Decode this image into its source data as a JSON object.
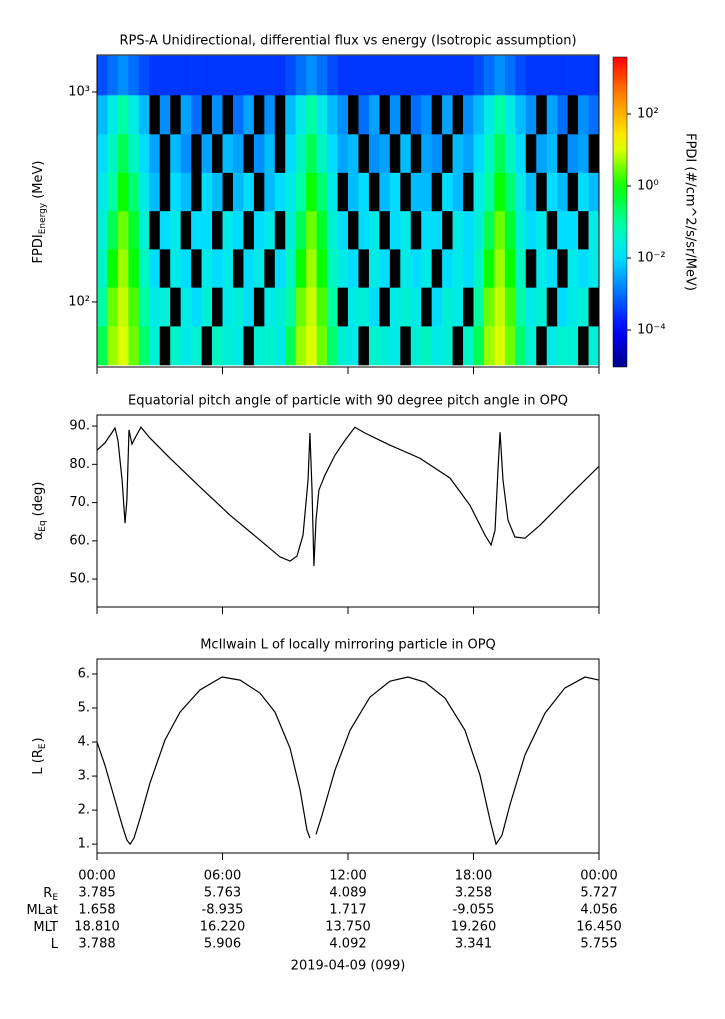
{
  "chart_data": [
    {
      "type": "heatmap",
      "title": "RPS-A Unidirectional, differential flux vs energy (Isotropic assumption)",
      "ylabel": {
        "text": "FPDI",
        "sub": "Energy",
        "after": "(MeV)"
      },
      "xlim": [
        0,
        24
      ],
      "xticks": [
        0,
        6,
        12,
        18,
        24
      ],
      "ylim": [
        49,
        1500
      ],
      "log_y": true,
      "yticks": [
        {
          "value": 100,
          "label": "10²"
        },
        {
          "value": 1000,
          "label": "10³"
        }
      ],
      "x": [
        0.25,
        0.75,
        1.25,
        1.75,
        2.25,
        2.75,
        3.25,
        3.75,
        4.25,
        4.75,
        5.25,
        5.75,
        6.25,
        6.75,
        7.25,
        7.75,
        8.25,
        8.75,
        9.25,
        9.75,
        10.25,
        10.75,
        11.25,
        11.75,
        12.25,
        12.75,
        13.25,
        13.75,
        14.25,
        14.75,
        15.25,
        15.75,
        16.25,
        16.75,
        17.25,
        17.75,
        18.25,
        18.75,
        19.25,
        19.75,
        20.25,
        20.75,
        21.25,
        21.75,
        22.25,
        22.75,
        23.25,
        23.75
      ],
      "y": [
        62,
        95,
        145,
        220,
        335,
        510,
        780,
        1200
      ],
      "z": [
        [
          0.3,
          5,
          10,
          3,
          0.2,
          0.03,
          null,
          0.04,
          0.02,
          0.03,
          null,
          0.05,
          0.03,
          0.02,
          null,
          0.03,
          0.04,
          0.02,
          0.3,
          5,
          10,
          3,
          0.2,
          0.03,
          0.02,
          null,
          0.04,
          0.03,
          0.02,
          null,
          0.03,
          0.05,
          0.02,
          0.03,
          null,
          0.04,
          0.3,
          5,
          10,
          3,
          0.2,
          0.03,
          null,
          0.02,
          0.04,
          0.03,
          null,
          0.03
        ],
        [
          0.1,
          3,
          8,
          2,
          0.1,
          0.02,
          0.03,
          null,
          0.02,
          0.01,
          0.03,
          null,
          0.02,
          0.03,
          0.01,
          null,
          0.02,
          0.03,
          0.1,
          3,
          8,
          2,
          0.1,
          null,
          0.02,
          0.03,
          0.01,
          null,
          0.02,
          0.03,
          0.02,
          null,
          0.01,
          0.03,
          0.02,
          null,
          0.1,
          3,
          8,
          2,
          0.1,
          0.02,
          0.03,
          null,
          0.01,
          0.02,
          0.03,
          null
        ],
        [
          0.05,
          1,
          5,
          1,
          0.05,
          0.01,
          null,
          0.02,
          0.01,
          null,
          0.02,
          0.01,
          0.02,
          null,
          0.01,
          0.02,
          null,
          0.01,
          0.05,
          1,
          5,
          1,
          0.05,
          0.02,
          0.01,
          null,
          0.02,
          0.01,
          null,
          0.02,
          0.01,
          0.02,
          null,
          0.01,
          0.02,
          0.01,
          0.05,
          1,
          5,
          1,
          0.05,
          null,
          0.02,
          0.01,
          null,
          0.02,
          0.01,
          0.02
        ],
        [
          0.03,
          0.3,
          3,
          0.5,
          0.03,
          null,
          0.01,
          0.02,
          null,
          0.01,
          0.01,
          null,
          0.02,
          0.01,
          null,
          0.01,
          0.02,
          null,
          0.03,
          0.3,
          3,
          0.5,
          0.03,
          0.01,
          null,
          0.01,
          0.02,
          null,
          0.01,
          0.02,
          null,
          0.01,
          0.01,
          null,
          0.02,
          0.01,
          0.03,
          0.3,
          3,
          0.5,
          0.03,
          0.01,
          0.02,
          null,
          0.01,
          0.01,
          null,
          0.02
        ],
        [
          0.02,
          0.1,
          1,
          0.2,
          0.02,
          0.005,
          null,
          0.01,
          0.005,
          null,
          0.01,
          0.005,
          null,
          0.005,
          0.01,
          null,
          0.005,
          0.01,
          0.02,
          0.1,
          1,
          0.2,
          0.02,
          null,
          0.005,
          0.01,
          null,
          0.005,
          0.01,
          null,
          0.005,
          0.005,
          null,
          0.01,
          0.005,
          null,
          0.02,
          0.1,
          1,
          0.2,
          0.02,
          0.005,
          null,
          0.01,
          0.005,
          null,
          0.01,
          0.005
        ],
        [
          0.01,
          0.05,
          0.3,
          0.05,
          0.01,
          0.003,
          null,
          0.005,
          0.002,
          null,
          0.003,
          null,
          0.005,
          0.003,
          null,
          0.002,
          0.005,
          null,
          0.01,
          0.05,
          0.3,
          0.05,
          0.01,
          0.003,
          0.005,
          null,
          0.002,
          0.003,
          null,
          0.005,
          null,
          0.003,
          0.002,
          null,
          0.005,
          0.003,
          0.01,
          0.05,
          0.3,
          0.05,
          0.01,
          null,
          0.003,
          0.005,
          null,
          0.002,
          0.003,
          null
        ],
        [
          0.005,
          0.02,
          0.1,
          0.02,
          0.005,
          null,
          0.002,
          null,
          0.003,
          0.001,
          null,
          0.002,
          null,
          0.001,
          0.003,
          null,
          0.002,
          null,
          0.005,
          0.02,
          0.1,
          0.02,
          0.005,
          0.002,
          null,
          0.001,
          0.003,
          null,
          0.002,
          null,
          0.001,
          0.002,
          null,
          0.003,
          null,
          0.002,
          0.005,
          0.02,
          0.1,
          0.02,
          0.005,
          0.002,
          null,
          0.003,
          0.001,
          null,
          0.002,
          0.001
        ],
        [
          0.0005,
          0.001,
          0.002,
          0.001,
          0.0005,
          0.0003,
          0.0003,
          0.0003,
          0.0003,
          0.0003,
          0.0003,
          0.0003,
          0.0003,
          0.0003,
          0.0003,
          0.0003,
          0.0003,
          0.0003,
          0.0005,
          0.001,
          0.002,
          0.001,
          0.0005,
          0.0003,
          0.0003,
          0.0003,
          0.0003,
          0.0003,
          0.0003,
          0.0003,
          0.0003,
          0.0003,
          0.0003,
          0.0003,
          0.0003,
          0.0003,
          0.0005,
          0.001,
          0.002,
          0.001,
          0.0005,
          0.0003,
          0.0003,
          0.0003,
          0.0003,
          0.0003,
          0.0003,
          0.0003
        ]
      ],
      "colorbar": {
        "label": "FPDI (#/cm^2/s/sr/MeV)",
        "clim": [
          9.4e-06,
          3830
        ],
        "ticks": [
          {
            "value": 0.0001,
            "label": "10⁻⁴"
          },
          {
            "value": 0.01,
            "label": "10⁻²"
          },
          {
            "value": 1,
            "label": "10⁰"
          },
          {
            "value": 100,
            "label": "10²"
          }
        ]
      }
    },
    {
      "type": "line",
      "title": "Equatorial pitch angle of particle with 90 degree pitch angle in OPQ",
      "ylabel": {
        "text": "α",
        "sub": "Eq",
        "after": "(deg)"
      },
      "xlim": [
        0,
        24
      ],
      "xticks": [
        0,
        6,
        12,
        18,
        24
      ],
      "ylim": [
        42.7,
        92.9
      ],
      "yticks": [
        {
          "value": 50,
          "label": "50."
        },
        {
          "value": 60,
          "label": "60."
        },
        {
          "value": 70,
          "label": "70."
        },
        {
          "value": 80,
          "label": "80."
        },
        {
          "value": 90,
          "label": "90."
        }
      ],
      "color": "#000000",
      "x": [
        0,
        0.38,
        0.86,
        1.0,
        1.2,
        1.34,
        1.43,
        1.53,
        1.67,
        1.82,
        2.1,
        2.53,
        3.49,
        4.92,
        6.36,
        7.79,
        8.75,
        9.23,
        9.56,
        9.85,
        10.09,
        10.18,
        10.28,
        10.37,
        10.47,
        10.61,
        10.9,
        11.38,
        11.86,
        12.33,
        12.81,
        14.01,
        15.44,
        16.88,
        17.83,
        18.55,
        18.84,
        19.03,
        19.17,
        19.27,
        19.41,
        19.65,
        19.98,
        20.46,
        21.18,
        22.61,
        24
      ],
      "values": [
        83.7,
        85.6,
        89.5,
        86.3,
        75.9,
        64.6,
        70.7,
        89,
        85.3,
        86.9,
        89.7,
        86.9,
        81.6,
        74.1,
        66.7,
        60.2,
        55.8,
        54.7,
        56,
        61.5,
        75.9,
        88.2,
        73.3,
        53.4,
        65.4,
        73.3,
        77.2,
        82.4,
        86.3,
        89.7,
        88.2,
        85.0,
        81.6,
        76.4,
        69.3,
        61.5,
        58.9,
        62.8,
        78.5,
        88.4,
        75.9,
        65.4,
        61.0,
        60.7,
        64.1,
        72.0,
        79.5
      ]
    },
    {
      "type": "line",
      "title": "McIlwain L of locally mirroring particle in OPQ",
      "ylabel": {
        "text": "L (R",
        "sub": "E",
        "after": ")"
      },
      "xlim": [
        0,
        24
      ],
      "xticks": [
        {
          "value": 0,
          "label": "00:00"
        },
        {
          "value": 6,
          "label": "06:00"
        },
        {
          "value": 12,
          "label": "12:00"
        },
        {
          "value": 18,
          "label": "18:00"
        },
        {
          "value": 24,
          "label": "00:00"
        }
      ],
      "ylim": [
        0.74,
        6.44
      ],
      "yticks": [
        {
          "value": 1,
          "label": "1."
        },
        {
          "value": 2,
          "label": "2."
        },
        {
          "value": 3,
          "label": "3."
        },
        {
          "value": 4,
          "label": "4."
        },
        {
          "value": 5,
          "label": "5."
        },
        {
          "value": 6,
          "label": "6."
        }
      ],
      "color": "#000000",
      "x": [
        0,
        0.38,
        0.86,
        1.2,
        1.43,
        1.58,
        1.77,
        2.06,
        2.53,
        3.25,
        3.97,
        4.92,
        5.98,
        6.84,
        7.79,
        8.51,
        9.23,
        9.71,
        10.04,
        10.18,
        10.3,
        10.47,
        10.76,
        11.38,
        12.1,
        13.05,
        14.01,
        14.87,
        15.68,
        16.64,
        17.59,
        18.31,
        18.79,
        19.08,
        19.36,
        19.74,
        20.46,
        21.42,
        22.37,
        23.33,
        24
      ],
      "values": [
        4.0,
        3.32,
        2.29,
        1.56,
        1.12,
        1.0,
        1.18,
        1.76,
        2.79,
        4.06,
        4.88,
        5.53,
        5.91,
        5.82,
        5.44,
        4.88,
        3.82,
        2.59,
        1.41,
        1.18,
        null,
        1.29,
        1.85,
        3.18,
        4.35,
        5.32,
        5.79,
        5.91,
        5.76,
        5.29,
        4.35,
        3.03,
        1.71,
        1.0,
        1.26,
        2.15,
        3.62,
        4.85,
        5.59,
        5.91,
        5.82
      ]
    }
  ],
  "ephemeris": {
    "rows": [
      {
        "label": "R",
        "sub": "E",
        "values": [
          "3.785",
          "5.763",
          "4.089",
          "3.258",
          "5.727"
        ]
      },
      {
        "label": "MLat",
        "values": [
          "1.658",
          "-8.935",
          "1.717",
          "-9.055",
          "4.056"
        ]
      },
      {
        "label": "MLT",
        "values": [
          "18.810",
          "16.220",
          "13.750",
          "19.260",
          "16.450"
        ]
      },
      {
        "label": "L",
        "values": [
          "3.788",
          "5.906",
          "4.092",
          "3.341",
          "5.755"
        ]
      }
    ],
    "date": "2019-04-09 (099)"
  }
}
